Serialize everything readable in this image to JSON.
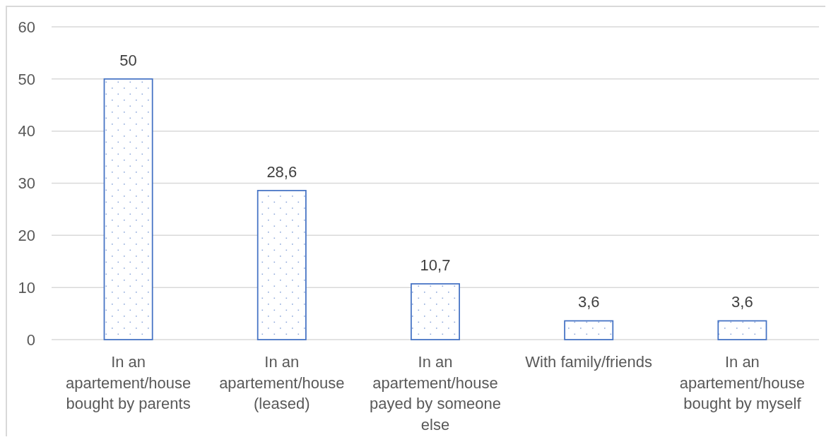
{
  "chart_data": {
    "type": "bar",
    "categories": [
      "In an apartement/house bought by parents",
      "In an apartement/house (leased)",
      "In an apartement/house payed by someone else",
      "With family/friends",
      "In an apartement/house bought by myself"
    ],
    "values": [
      50,
      28.6,
      10.7,
      3.6,
      3.6
    ],
    "value_labels": [
      "50",
      "28,6",
      "10,7",
      "3,6",
      "3,6"
    ],
    "color": "#4472c4",
    "ylim": [
      0,
      60
    ],
    "yticks": [
      0,
      10,
      20,
      30,
      40,
      50,
      60
    ],
    "grid": "y"
  }
}
